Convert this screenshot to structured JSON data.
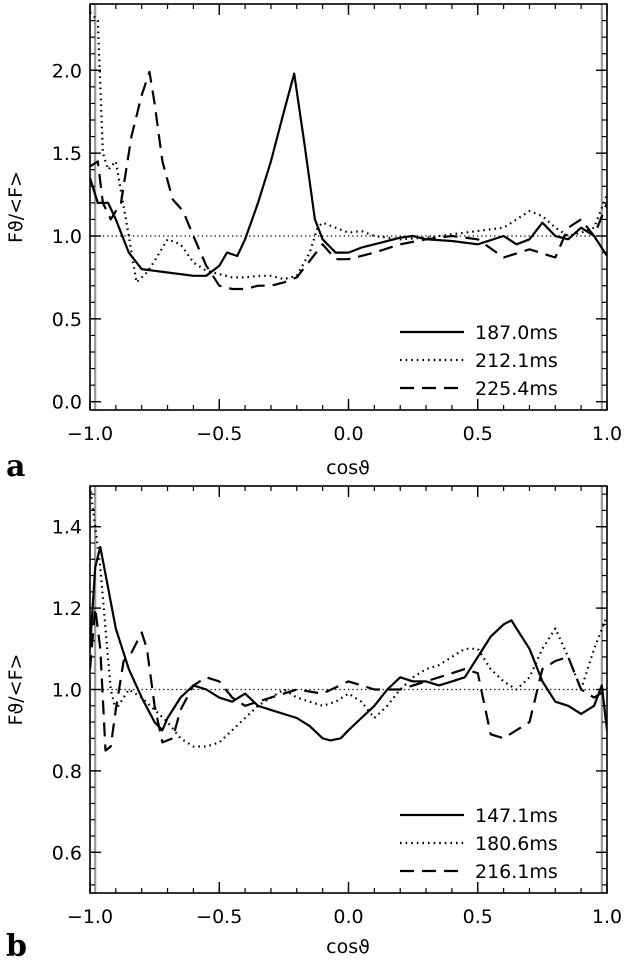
{
  "figure": {
    "panel_letters": [
      "a",
      "b"
    ]
  },
  "chart_data": [
    {
      "type": "line",
      "panel": "a",
      "xlabel": "cosϑ",
      "ylabel": "Fϑ/<F>",
      "xlim": [
        -1.0,
        1.0
      ],
      "ylim": [
        -0.05,
        2.4
      ],
      "xticks": [
        "−1.0",
        "−0.5",
        "0.0",
        "0.5",
        "1.0"
      ],
      "xtick_values": [
        -1.0,
        -0.5,
        0.0,
        0.5,
        1.0
      ],
      "yticks": [
        "0.0",
        "0.5",
        "1.0",
        "1.5",
        "2.0"
      ],
      "ytick_values": [
        0.0,
        0.5,
        1.0,
        1.5,
        2.0
      ],
      "reference_line": 1.0,
      "vertical_lines": [
        -0.98,
        0.98
      ],
      "legend_placement": "bottom-right",
      "series": [
        {
          "name": "187.0ms",
          "dash": "solid",
          "x": [
            -1.0,
            -0.97,
            -0.93,
            -0.9,
            -0.85,
            -0.8,
            -0.75,
            -0.7,
            -0.65,
            -0.6,
            -0.55,
            -0.5,
            -0.47,
            -0.43,
            -0.4,
            -0.35,
            -0.3,
            -0.25,
            -0.21,
            -0.17,
            -0.13,
            -0.1,
            -0.05,
            0.0,
            0.05,
            0.1,
            0.15,
            0.2,
            0.25,
            0.3,
            0.4,
            0.5,
            0.6,
            0.65,
            0.7,
            0.75,
            0.8,
            0.85,
            0.9,
            0.95,
            1.0
          ],
          "y": [
            1.35,
            1.2,
            1.2,
            1.1,
            0.9,
            0.8,
            0.79,
            0.78,
            0.77,
            0.76,
            0.76,
            0.82,
            0.9,
            0.88,
            0.98,
            1.2,
            1.45,
            1.75,
            1.98,
            1.55,
            1.1,
            0.98,
            0.9,
            0.9,
            0.93,
            0.95,
            0.97,
            0.99,
            1.0,
            0.98,
            0.97,
            0.95,
            1.0,
            0.95,
            0.98,
            1.08,
            1.0,
            0.98,
            1.05,
            1.0,
            0.88
          ]
        },
        {
          "name": "212.1ms",
          "dash": "dotted",
          "x": [
            -1.0,
            -0.97,
            -0.95,
            -0.93,
            -0.9,
            -0.85,
            -0.82,
            -0.78,
            -0.75,
            -0.7,
            -0.65,
            -0.6,
            -0.55,
            -0.5,
            -0.45,
            -0.4,
            -0.35,
            -0.3,
            -0.25,
            -0.2,
            -0.15,
            -0.12,
            -0.1,
            -0.05,
            0.0,
            0.05,
            0.1,
            0.2,
            0.3,
            0.4,
            0.5,
            0.6,
            0.7,
            0.75,
            0.8,
            0.85,
            0.9,
            0.95,
            1.0
          ],
          "y": [
            2.35,
            2.3,
            1.5,
            1.4,
            1.45,
            1.0,
            0.72,
            0.78,
            0.85,
            0.98,
            0.95,
            0.84,
            0.79,
            0.77,
            0.75,
            0.75,
            0.76,
            0.76,
            0.74,
            0.76,
            0.9,
            1.05,
            1.08,
            1.05,
            1.02,
            1.03,
            1.0,
            0.98,
            0.99,
            1.01,
            1.03,
            1.05,
            1.15,
            1.12,
            1.05,
            1.0,
            1.02,
            1.05,
            1.25
          ]
        },
        {
          "name": "225.4ms",
          "dash": "dashed",
          "x": [
            -1.0,
            -0.97,
            -0.95,
            -0.92,
            -0.88,
            -0.84,
            -0.8,
            -0.77,
            -0.75,
            -0.72,
            -0.68,
            -0.64,
            -0.6,
            -0.55,
            -0.5,
            -0.45,
            -0.4,
            -0.35,
            -0.3,
            -0.25,
            -0.2,
            -0.15,
            -0.1,
            -0.05,
            0.0,
            0.1,
            0.2,
            0.3,
            0.4,
            0.5,
            0.6,
            0.7,
            0.8,
            0.85,
            0.9,
            0.95,
            1.0
          ],
          "y": [
            1.42,
            1.45,
            1.2,
            1.1,
            1.2,
            1.6,
            1.85,
            1.99,
            1.8,
            1.45,
            1.22,
            1.15,
            1.0,
            0.82,
            0.7,
            0.68,
            0.68,
            0.7,
            0.7,
            0.72,
            0.75,
            0.85,
            0.95,
            0.86,
            0.86,
            0.9,
            0.95,
            0.98,
            1.0,
            0.98,
            0.87,
            0.92,
            0.87,
            1.05,
            1.1,
            1.0,
            1.2
          ]
        }
      ]
    },
    {
      "type": "line",
      "panel": "b",
      "xlabel": "cosϑ",
      "ylabel": "Fϑ/<F>",
      "xlim": [
        -1.0,
        1.0
      ],
      "ylim": [
        0.5,
        1.5
      ],
      "xticks": [
        "−1.0",
        "−0.5",
        "0.0",
        "0.5",
        "1.0"
      ],
      "xtick_values": [
        -1.0,
        -0.5,
        0.0,
        0.5,
        1.0
      ],
      "yticks": [
        "0.6",
        "0.8",
        "1.0",
        "1.2",
        "1.4"
      ],
      "ytick_values": [
        0.6,
        0.8,
        1.0,
        1.2,
        1.4
      ],
      "reference_line": 1.0,
      "vertical_lines": [
        -0.98,
        0.98
      ],
      "legend_placement": "bottom-right",
      "series": [
        {
          "name": "147.1ms",
          "dash": "solid",
          "x": [
            -1.0,
            -0.98,
            -0.96,
            -0.93,
            -0.9,
            -0.85,
            -0.8,
            -0.75,
            -0.72,
            -0.7,
            -0.65,
            -0.6,
            -0.55,
            -0.5,
            -0.45,
            -0.4,
            -0.35,
            -0.3,
            -0.2,
            -0.15,
            -0.1,
            -0.07,
            -0.03,
            0.0,
            0.05,
            0.1,
            0.15,
            0.2,
            0.25,
            0.3,
            0.35,
            0.4,
            0.45,
            0.5,
            0.55,
            0.6,
            0.63,
            0.65,
            0.7,
            0.75,
            0.8,
            0.85,
            0.9,
            0.95,
            0.98,
            1.0
          ],
          "y": [
            1.1,
            1.3,
            1.35,
            1.25,
            1.15,
            1.05,
            0.98,
            0.92,
            0.9,
            0.93,
            0.98,
            1.01,
            1.0,
            0.98,
            0.97,
            0.99,
            0.96,
            0.95,
            0.93,
            0.91,
            0.88,
            0.875,
            0.88,
            0.9,
            0.93,
            0.96,
            1.0,
            1.03,
            1.02,
            1.02,
            1.01,
            1.02,
            1.03,
            1.08,
            1.13,
            1.16,
            1.17,
            1.15,
            1.1,
            1.02,
            0.97,
            0.96,
            0.94,
            0.96,
            1.01,
            0.9
          ]
        },
        {
          "name": "180.6ms",
          "dash": "dotted",
          "x": [
            -1.0,
            -0.98,
            -0.96,
            -0.94,
            -0.92,
            -0.9,
            -0.85,
            -0.8,
            -0.75,
            -0.7,
            -0.65,
            -0.6,
            -0.55,
            -0.5,
            -0.45,
            -0.4,
            -0.35,
            -0.3,
            -0.25,
            -0.2,
            -0.15,
            -0.1,
            -0.05,
            0.0,
            0.05,
            0.1,
            0.15,
            0.2,
            0.25,
            0.3,
            0.35,
            0.4,
            0.45,
            0.5,
            0.55,
            0.6,
            0.65,
            0.7,
            0.75,
            0.8,
            0.85,
            0.9,
            0.95,
            1.0
          ],
          "y": [
            1.5,
            1.4,
            1.3,
            1.15,
            1.0,
            0.95,
            1.0,
            0.98,
            0.95,
            0.92,
            0.88,
            0.86,
            0.86,
            0.87,
            0.9,
            0.93,
            0.96,
            0.98,
            1.0,
            0.98,
            0.97,
            0.96,
            0.97,
            0.99,
            0.97,
            0.93,
            0.96,
            1.0,
            1.03,
            1.05,
            1.06,
            1.08,
            1.1,
            1.1,
            1.05,
            1.02,
            1.0,
            1.03,
            1.1,
            1.15,
            1.08,
            1.0,
            1.1,
            1.18
          ]
        },
        {
          "name": "216.1ms",
          "dash": "dashed",
          "x": [
            -1.0,
            -0.98,
            -0.96,
            -0.94,
            -0.92,
            -0.9,
            -0.87,
            -0.84,
            -0.8,
            -0.78,
            -0.75,
            -0.72,
            -0.68,
            -0.65,
            -0.6,
            -0.55,
            -0.5,
            -0.45,
            -0.4,
            -0.35,
            -0.3,
            -0.2,
            -0.1,
            0.0,
            0.1,
            0.2,
            0.3,
            0.35,
            0.4,
            0.45,
            0.5,
            0.52,
            0.55,
            0.6,
            0.65,
            0.7,
            0.75,
            0.8,
            0.85,
            0.9,
            0.95,
            1.0
          ],
          "y": [
            1.05,
            1.2,
            1.1,
            0.85,
            0.86,
            0.95,
            1.07,
            1.09,
            1.14,
            1.1,
            0.96,
            0.87,
            0.88,
            0.95,
            1.01,
            1.03,
            1.02,
            0.98,
            0.96,
            0.97,
            0.98,
            1.0,
            0.99,
            1.02,
            1.0,
            1.0,
            1.02,
            1.03,
            1.04,
            1.05,
            1.04,
            0.98,
            0.89,
            0.88,
            0.9,
            0.92,
            1.05,
            1.07,
            1.08,
            1.0,
            0.98,
            1.0
          ]
        }
      ]
    }
  ]
}
